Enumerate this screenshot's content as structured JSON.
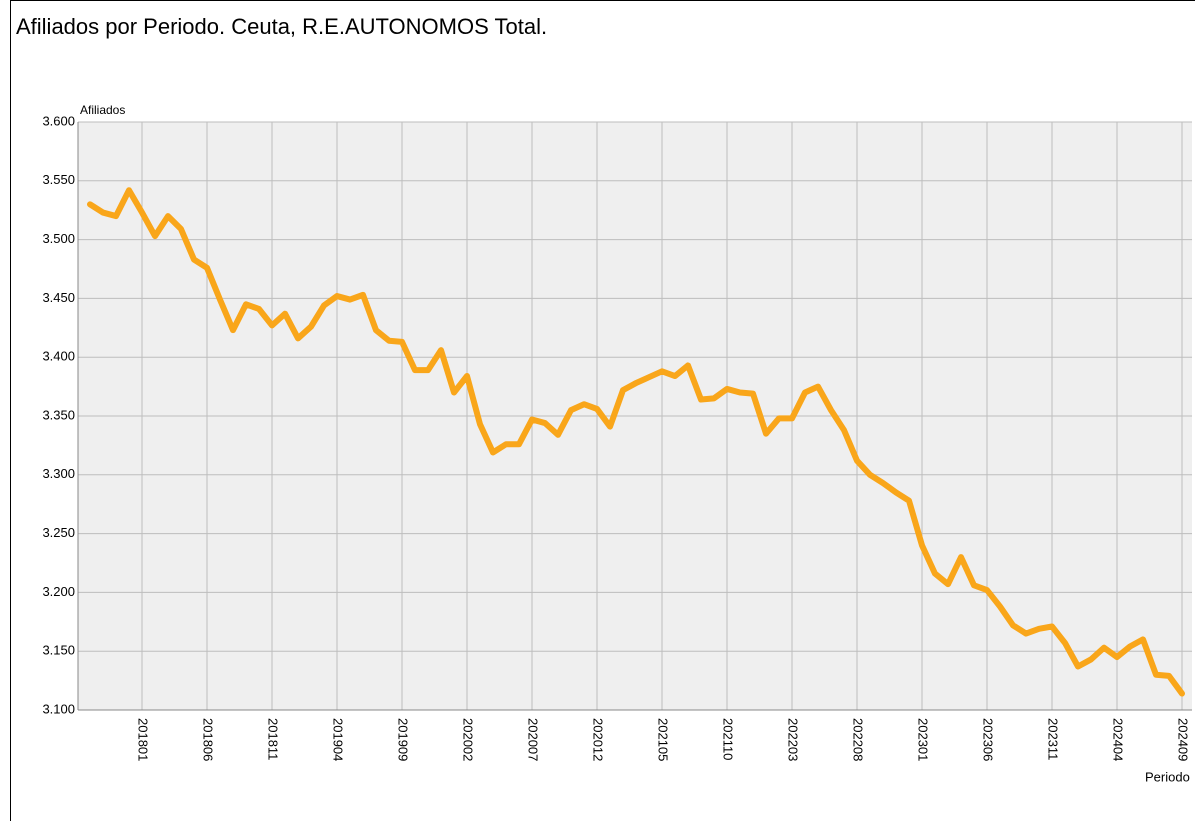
{
  "chart_data": {
    "type": "line",
    "title": "Afiliados por Periodo. Ceuta, R.E.AUTONOMOS Total.",
    "y_label": "Afiliados",
    "x_label": "Periodo",
    "categories": [
      null,
      null,
      null,
      null,
      "201801",
      null,
      null,
      null,
      null,
      "201806",
      null,
      null,
      null,
      null,
      "201811",
      null,
      null,
      null,
      null,
      "201904",
      null,
      null,
      null,
      null,
      "201909",
      null,
      null,
      null,
      null,
      "202002",
      null,
      null,
      null,
      null,
      "202007",
      null,
      null,
      null,
      null,
      "202012",
      null,
      null,
      null,
      null,
      "202105",
      null,
      null,
      null,
      null,
      "202110",
      null,
      null,
      null,
      null,
      "202203",
      null,
      null,
      null,
      null,
      "202208",
      null,
      null,
      null,
      null,
      "202301",
      null,
      null,
      null,
      null,
      "202306",
      null,
      null,
      null,
      null,
      "202311",
      null,
      null,
      null,
      null,
      "202404",
      null,
      null,
      null,
      null,
      "202409"
    ],
    "series": [
      {
        "name": "Afiliados",
        "color": "#f9a61a",
        "values": [
          3530,
          3523,
          3520,
          3542,
          3523,
          3503,
          3520,
          3509,
          3483,
          3476,
          3449,
          3423,
          3445,
          3441,
          3427,
          3437,
          3416,
          3426,
          3444,
          3452,
          3449,
          3453,
          3423,
          3414,
          3413,
          3389,
          3389,
          3406,
          3370,
          3384,
          3343,
          3319,
          3326,
          3326,
          3347,
          3344,
          3334,
          3355,
          3360,
          3356,
          3341,
          3372,
          3378,
          3383,
          3388,
          3384,
          3393,
          3364,
          3365,
          3373,
          3370,
          3369,
          3335,
          3348,
          3348,
          3370,
          3375,
          3355,
          3338,
          3312,
          3300,
          3293,
          3285,
          3278,
          3240,
          3216,
          3207,
          3230,
          3206,
          3202,
          3188,
          3172,
          3165,
          3169,
          3171,
          3157,
          3137,
          3143,
          3153,
          3145,
          3154,
          3160,
          3130,
          3129,
          3114
        ]
      }
    ],
    "ylim": [
      3100,
      3600
    ],
    "yticks": [
      {
        "value": 3100,
        "label": "3.100"
      },
      {
        "value": 3150,
        "label": "3.150"
      },
      {
        "value": 3200,
        "label": "3.200"
      },
      {
        "value": 3250,
        "label": "3.250"
      },
      {
        "value": 3300,
        "label": "3.300"
      },
      {
        "value": 3350,
        "label": "3.350"
      },
      {
        "value": 3400,
        "label": "3.400"
      },
      {
        "value": 3450,
        "label": "3.450"
      },
      {
        "value": 3500,
        "label": "3.500"
      },
      {
        "value": 3550,
        "label": "3.550"
      },
      {
        "value": 3600,
        "label": "3.600"
      }
    ],
    "grid": true
  }
}
